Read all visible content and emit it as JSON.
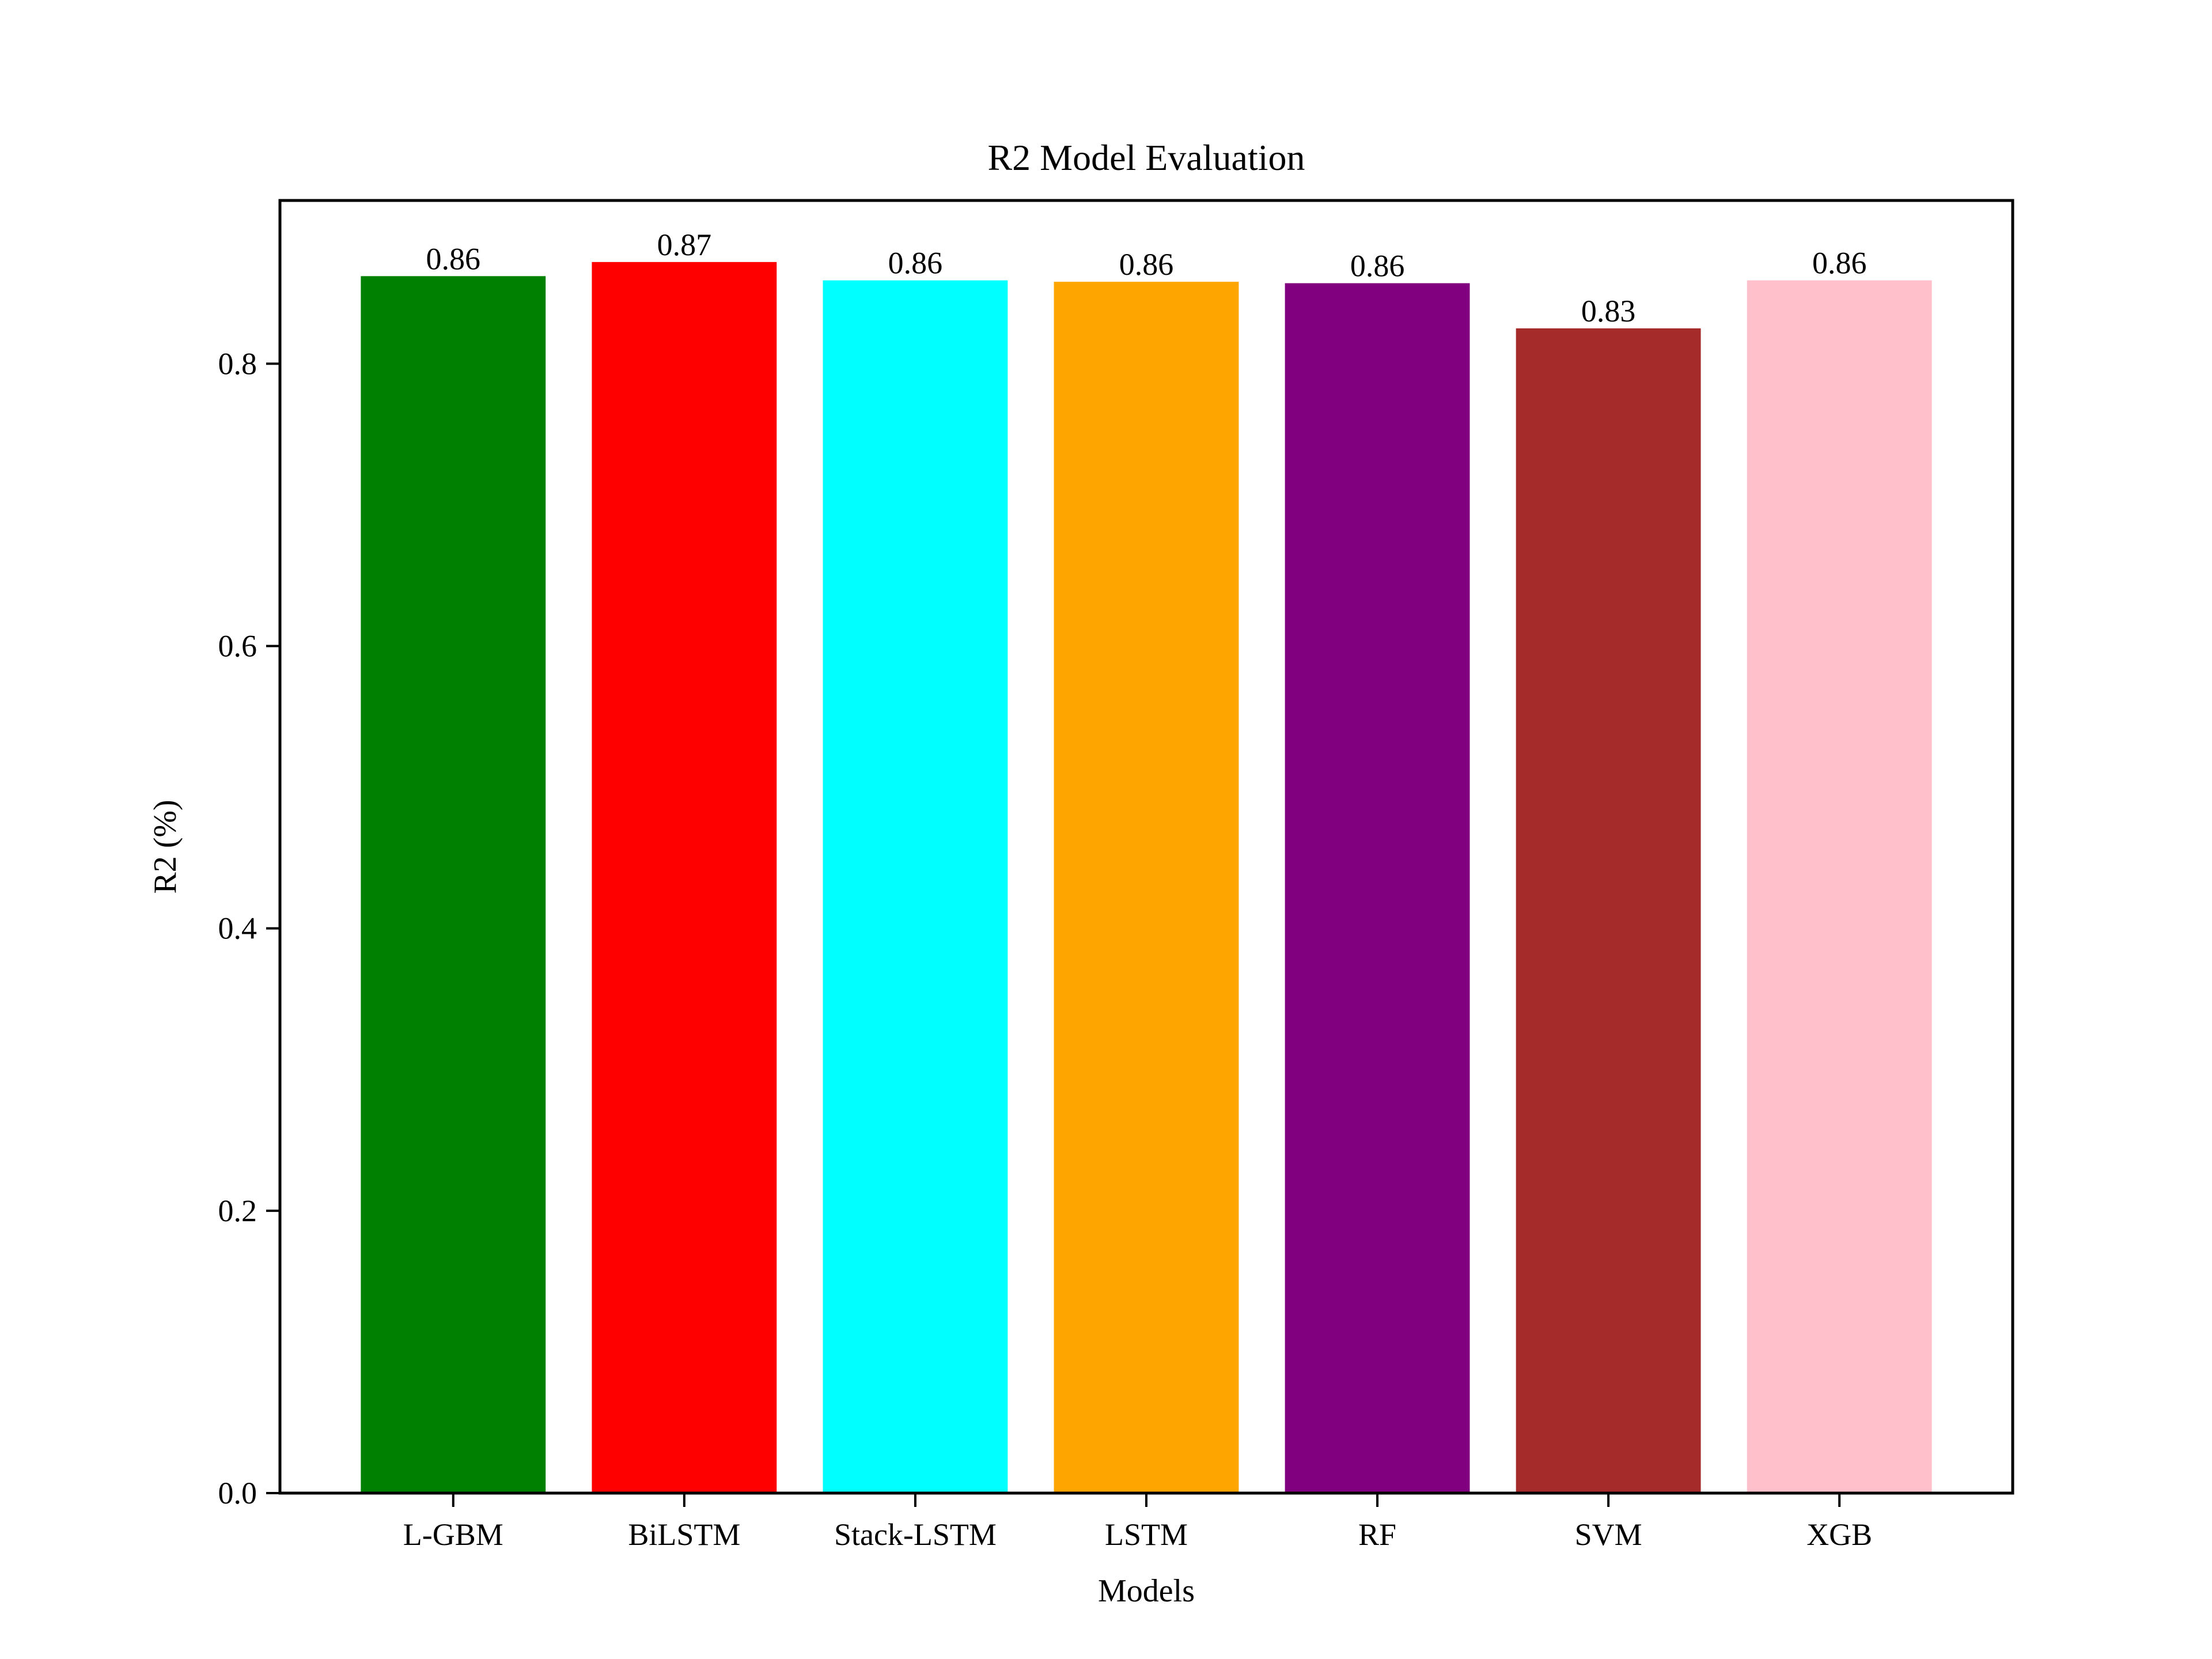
{
  "chart_data": {
    "type": "bar",
    "title": "R2 Model Evaluation",
    "xlabel": "Models",
    "ylabel": "R2 (%)",
    "categories": [
      "L-GBM",
      "BiLSTM",
      "Stack-LSTM",
      "LSTM",
      "RF",
      "SVM",
      "XGB"
    ],
    "values": [
      0.862,
      0.872,
      0.859,
      0.858,
      0.857,
      0.825,
      0.859
    ],
    "value_labels": [
      "0.86",
      "0.87",
      "0.86",
      "0.86",
      "0.86",
      "0.83",
      "0.86"
    ],
    "colors": [
      "#008000",
      "#ff0000",
      "#00ffff",
      "#ffa500",
      "#800080",
      "#a52a2a",
      "#ffc0cb"
    ],
    "ylim": [
      0,
      0.9156
    ],
    "yticks": [
      0.0,
      0.2,
      0.4,
      0.6,
      0.8
    ],
    "ytick_labels": [
      "0.0",
      "0.2",
      "0.4",
      "0.6",
      "0.8"
    ],
    "grid": false,
    "legend": "none"
  }
}
